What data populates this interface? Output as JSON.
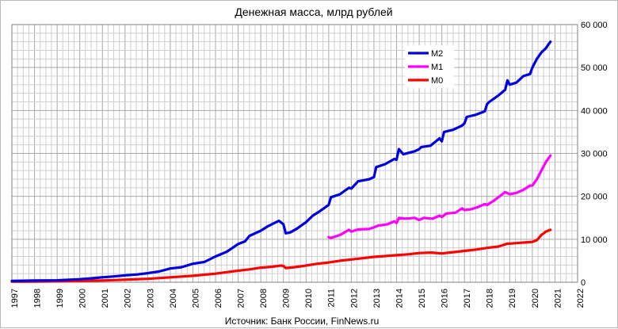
{
  "chart_data": {
    "type": "line",
    "title": "Денежная масса, млрд рублей",
    "source": "Источник: Банк России, FinNews.ru",
    "xlabel": "",
    "ylabel": "",
    "xlim": [
      1997,
      2022
    ],
    "ylim": [
      0,
      60000
    ],
    "y_ticks": [
      0,
      10000,
      20000,
      30000,
      40000,
      50000,
      60000
    ],
    "y_tick_labels": [
      "0",
      "10 000",
      "20 000",
      "30 000",
      "40 000",
      "50 000",
      "60 000"
    ],
    "x_ticks": [
      "1997",
      "1998",
      "1999",
      "2000",
      "2001",
      "2002",
      "2003",
      "2004",
      "2005",
      "2006",
      "2007",
      "2008",
      "2009",
      "2010",
      "2011",
      "2012",
      "2013",
      "2014",
      "2015",
      "2016",
      "2017",
      "2018",
      "2019",
      "2020",
      "2021",
      "2022"
    ],
    "grid": true,
    "legend_position": "top-right",
    "series": [
      {
        "name": "M2",
        "color": "#0000dd",
        "points": [
          [
            1997.0,
            300
          ],
          [
            1998.0,
            380
          ],
          [
            1999.0,
            450
          ],
          [
            2000.0,
            700
          ],
          [
            2000.5,
            900
          ],
          [
            2001.0,
            1150
          ],
          [
            2001.5,
            1350
          ],
          [
            2002.0,
            1600
          ],
          [
            2002.5,
            1800
          ],
          [
            2003.0,
            2100
          ],
          [
            2003.5,
            2500
          ],
          [
            2004.0,
            3200
          ],
          [
            2004.5,
            3500
          ],
          [
            2005.0,
            4300
          ],
          [
            2005.5,
            4700
          ],
          [
            2006.0,
            6000
          ],
          [
            2006.5,
            7100
          ],
          [
            2007.0,
            8900
          ],
          [
            2007.3,
            9500
          ],
          [
            2007.5,
            10800
          ],
          [
            2008.0,
            12000
          ],
          [
            2008.3,
            13000
          ],
          [
            2008.6,
            13800
          ],
          [
            2008.8,
            14300
          ],
          [
            2009.0,
            13500
          ],
          [
            2009.1,
            11400
          ],
          [
            2009.3,
            11600
          ],
          [
            2009.6,
            12500
          ],
          [
            2010.0,
            14000
          ],
          [
            2010.3,
            15500
          ],
          [
            2010.6,
            16500
          ],
          [
            2011.0,
            18000
          ],
          [
            2011.1,
            19800
          ],
          [
            2011.5,
            20500
          ],
          [
            2011.9,
            22000
          ],
          [
            2012.0,
            21800
          ],
          [
            2012.3,
            23500
          ],
          [
            2012.8,
            24000
          ],
          [
            2013.0,
            24500
          ],
          [
            2013.1,
            26800
          ],
          [
            2013.5,
            27500
          ],
          [
            2013.9,
            28700
          ],
          [
            2014.0,
            28500
          ],
          [
            2014.1,
            31000
          ],
          [
            2014.3,
            29800
          ],
          [
            2014.8,
            30500
          ],
          [
            2015.0,
            31000
          ],
          [
            2015.1,
            31500
          ],
          [
            2015.5,
            31800
          ],
          [
            2015.9,
            33500
          ],
          [
            2016.0,
            32800
          ],
          [
            2016.1,
            35000
          ],
          [
            2016.5,
            35500
          ],
          [
            2016.9,
            36500
          ],
          [
            2017.0,
            37000
          ],
          [
            2017.1,
            38500
          ],
          [
            2017.5,
            39000
          ],
          [
            2017.9,
            39800
          ],
          [
            2018.0,
            41500
          ],
          [
            2018.1,
            42000
          ],
          [
            2018.5,
            43500
          ],
          [
            2018.8,
            44800
          ],
          [
            2018.9,
            47000
          ],
          [
            2019.0,
            46000
          ],
          [
            2019.3,
            46500
          ],
          [
            2019.6,
            48000
          ],
          [
            2019.9,
            48500
          ],
          [
            2020.0,
            50000
          ],
          [
            2020.2,
            52000
          ],
          [
            2020.4,
            53500
          ],
          [
            2020.6,
            54500
          ],
          [
            2020.7,
            55300
          ],
          [
            2020.8,
            56000
          ]
        ]
      },
      {
        "name": "M1",
        "color": "#ff00ff",
        "points": [
          [
            2011.0,
            10500
          ],
          [
            2011.1,
            10300
          ],
          [
            2011.5,
            11000
          ],
          [
            2011.9,
            12200
          ],
          [
            2012.0,
            11800
          ],
          [
            2012.3,
            12300
          ],
          [
            2012.8,
            12400
          ],
          [
            2013.0,
            12800
          ],
          [
            2013.2,
            13200
          ],
          [
            2013.6,
            13500
          ],
          [
            2013.9,
            14200
          ],
          [
            2014.0,
            13800
          ],
          [
            2014.1,
            15000
          ],
          [
            2014.4,
            14800
          ],
          [
            2014.8,
            15000
          ],
          [
            2015.0,
            14500
          ],
          [
            2015.2,
            15000
          ],
          [
            2015.6,
            14800
          ],
          [
            2015.9,
            15500
          ],
          [
            2016.0,
            15200
          ],
          [
            2016.2,
            16000
          ],
          [
            2016.6,
            16200
          ],
          [
            2016.9,
            17200
          ],
          [
            2017.0,
            16800
          ],
          [
            2017.3,
            17000
          ],
          [
            2017.6,
            17500
          ],
          [
            2017.9,
            18200
          ],
          [
            2018.0,
            18000
          ],
          [
            2018.3,
            19000
          ],
          [
            2018.6,
            20200
          ],
          [
            2018.8,
            21000
          ],
          [
            2019.0,
            20500
          ],
          [
            2019.3,
            20800
          ],
          [
            2019.6,
            21500
          ],
          [
            2019.9,
            22500
          ],
          [
            2020.0,
            22500
          ],
          [
            2020.2,
            24000
          ],
          [
            2020.4,
            26000
          ],
          [
            2020.6,
            28000
          ],
          [
            2020.8,
            29500
          ]
        ]
      },
      {
        "name": "M0",
        "color": "#ff0000",
        "points": [
          [
            1997.0,
            130
          ],
          [
            1998.0,
            150
          ],
          [
            1999.0,
            200
          ],
          [
            2000.0,
            300
          ],
          [
            2001.0,
            400
          ],
          [
            2002.0,
            600
          ],
          [
            2003.0,
            800
          ],
          [
            2004.0,
            1150
          ],
          [
            2005.0,
            1500
          ],
          [
            2006.0,
            2000
          ],
          [
            2007.0,
            2700
          ],
          [
            2007.5,
            3000
          ],
          [
            2008.0,
            3400
          ],
          [
            2008.5,
            3600
          ],
          [
            2008.9,
            3900
          ],
          [
            2009.0,
            3800
          ],
          [
            2009.1,
            3300
          ],
          [
            2009.5,
            3500
          ],
          [
            2009.9,
            3800
          ],
          [
            2010.0,
            3900
          ],
          [
            2010.5,
            4300
          ],
          [
            2011.0,
            4600
          ],
          [
            2011.5,
            5000
          ],
          [
            2012.0,
            5300
          ],
          [
            2012.5,
            5600
          ],
          [
            2013.0,
            5900
          ],
          [
            2013.5,
            6100
          ],
          [
            2014.0,
            6300
          ],
          [
            2014.5,
            6500
          ],
          [
            2015.0,
            6800
          ],
          [
            2015.5,
            6900
          ],
          [
            2016.0,
            6700
          ],
          [
            2016.5,
            7000
          ],
          [
            2017.0,
            7300
          ],
          [
            2017.5,
            7600
          ],
          [
            2018.0,
            8000
          ],
          [
            2018.5,
            8300
          ],
          [
            2018.9,
            9000
          ],
          [
            2019.0,
            9000
          ],
          [
            2019.5,
            9200
          ],
          [
            2020.0,
            9400
          ],
          [
            2020.2,
            9800
          ],
          [
            2020.4,
            11000
          ],
          [
            2020.6,
            11800
          ],
          [
            2020.8,
            12200
          ]
        ]
      }
    ]
  }
}
